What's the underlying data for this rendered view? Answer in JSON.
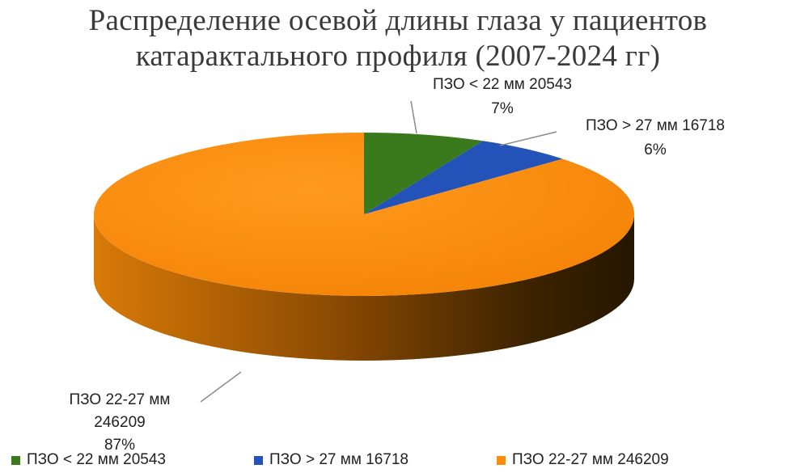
{
  "chart_data": {
    "type": "pie",
    "title_lines": [
      "Распределение осевой длины глаза  у пациентов",
      "катарактального профиля (2007-2024 гг)"
    ],
    "legend_position": "bottom",
    "slices": [
      {
        "name": "ПЗО < 22 мм 20543",
        "label_line1": "ПЗО < 22 мм 20543",
        "label_line2": "7%",
        "value": 20543,
        "percent": "7%",
        "color": "#3a7a1c"
      },
      {
        "name": "ПЗО > 27 мм 16718",
        "label_line1": "ПЗО > 27 мм 16718",
        "label_line2": "6%",
        "value": 16718,
        "percent": "6%",
        "color": "#2352b8"
      },
      {
        "name": "ПЗО 22-27 мм 246209",
        "label_line1": "ПЗО 22-27 мм",
        "label_line2": "246209",
        "label_line3": "87%",
        "value": 246209,
        "percent": "87%",
        "color": "#fb8c0c"
      }
    ]
  }
}
